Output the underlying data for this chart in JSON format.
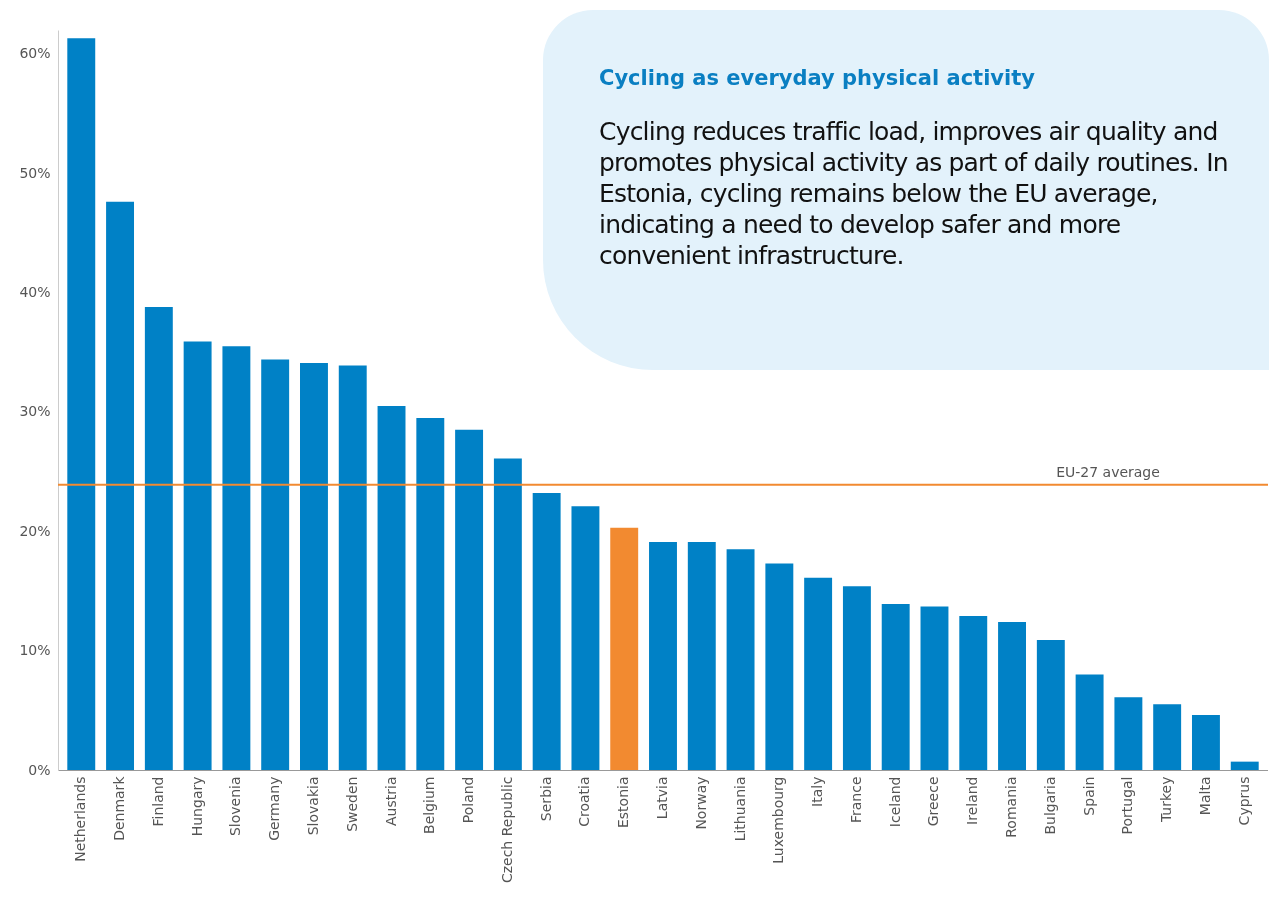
{
  "chart_data": {
    "type": "bar",
    "categories": [
      "Netherlands",
      "Denmark",
      "Finland",
      "Hungary",
      "Slovenia",
      "Germany",
      "Slovakia",
      "Sweden",
      "Austria",
      "Belgium",
      "Poland",
      "Czech Republic",
      "Serbia",
      "Croatia",
      "Estonia",
      "Latvia",
      "Norway",
      "Lithuania",
      "Luxembourg",
      "Italy",
      "France",
      "Iceland",
      "Greece",
      "Ireland",
      "Romania",
      "Bulgaria",
      "Spain",
      "Portugal",
      "Turkey",
      "Malta",
      "Cyprus"
    ],
    "values": [
      61.3,
      47.6,
      38.8,
      35.9,
      35.5,
      34.4,
      34.1,
      33.9,
      30.5,
      29.5,
      28.5,
      26.1,
      23.2,
      22.1,
      20.3,
      19.1,
      19.1,
      18.5,
      17.3,
      16.1,
      15.4,
      13.9,
      13.7,
      12.9,
      12.4,
      10.9,
      8.0,
      6.1,
      5.5,
      4.6,
      0.7
    ],
    "colors": [
      "#0081c6",
      "#0081c6",
      "#0081c6",
      "#0081c6",
      "#0081c6",
      "#0081c6",
      "#0081c6",
      "#0081c6",
      "#0081c6",
      "#0081c6",
      "#0081c6",
      "#0081c6",
      "#0081c6",
      "#0081c6",
      "#f28a30",
      "#0081c6",
      "#0081c6",
      "#0081c6",
      "#0081c6",
      "#0081c6",
      "#0081c6",
      "#0081c6",
      "#0081c6",
      "#0081c6",
      "#0081c6",
      "#0081c6",
      "#0081c6",
      "#0081c6",
      "#0081c6",
      "#0081c6",
      "#0081c6"
    ],
    "ylim": [
      0,
      62
    ],
    "yticks": [
      {
        "value": 0,
        "label": "0%"
      },
      {
        "value": 10,
        "label": "10%"
      },
      {
        "value": 20,
        "label": "20%"
      },
      {
        "value": 30,
        "label": "30%"
      },
      {
        "value": 40,
        "label": "40%"
      },
      {
        "value": 50,
        "label": "50%"
      },
      {
        "value": 60,
        "label": "60%"
      }
    ],
    "ref_lines": [
      {
        "axis": "y",
        "value": 23.9,
        "label": "EU-27 average",
        "color": "#f28a30"
      }
    ],
    "annotations": [
      "Cycling as everyday physical activity",
      "Cycling reduces traffic load, improves air quality and promotes physical activity as part of daily routines. In Estonia, cycling remains below the EU average, indicating a need to develop safer and more convenient infrastructure."
    ],
    "grid": false
  }
}
